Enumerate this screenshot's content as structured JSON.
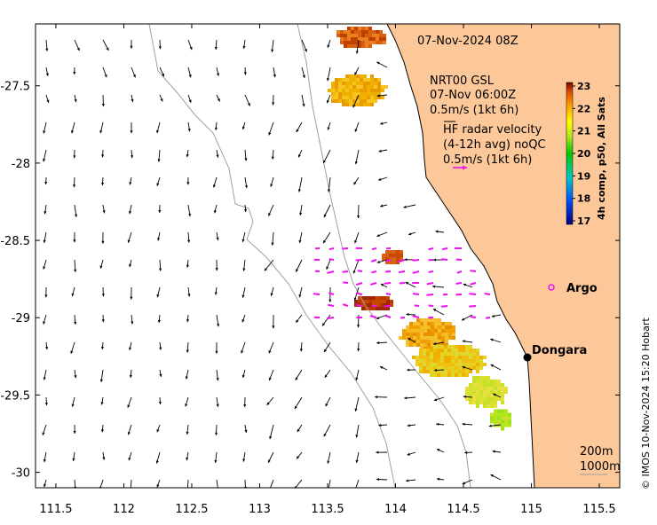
{
  "map": {
    "timestamp": "07-Nov-2024 08Z",
    "model_title": "NRT00 GSL",
    "model_time": "07-Nov 06:00Z",
    "model_scale": "0.5m/s (1kt 6h)",
    "hf_title": "HF radar velocity",
    "hf_subtitle": "(4-12h avg) noQC",
    "hf_scale": "0.5m/s (1kt 6h)",
    "place_argo": "Argo",
    "place_dongara": "Dongara",
    "depth_200": "200m",
    "depth_1000": "1000m",
    "credit": "© IMOS 10-Nov-2024 15:20 Hobart",
    "colors": {
      "land": "#fcc89a",
      "contour": "#a0a0a0",
      "arrow": "#000000",
      "hf_arrow": "#ee11ee"
    }
  },
  "colorbar": {
    "label": "4h comp, p50, All Sats",
    "ticks": [
      "23",
      "22",
      "21",
      "20",
      "19",
      "18",
      "17"
    ],
    "range": [
      17,
      23
    ]
  },
  "axes": {
    "xticks": [
      "111.5",
      "112",
      "112.5",
      "113",
      "113.5",
      "114",
      "114.5",
      "115",
      "115.5"
    ],
    "yticks": [
      "-27.5",
      "-28",
      "-28.5",
      "-29",
      "-29.5",
      "-30"
    ],
    "xlim": [
      111.35,
      115.65
    ],
    "ylim": [
      -30.1,
      -27.1
    ]
  }
}
